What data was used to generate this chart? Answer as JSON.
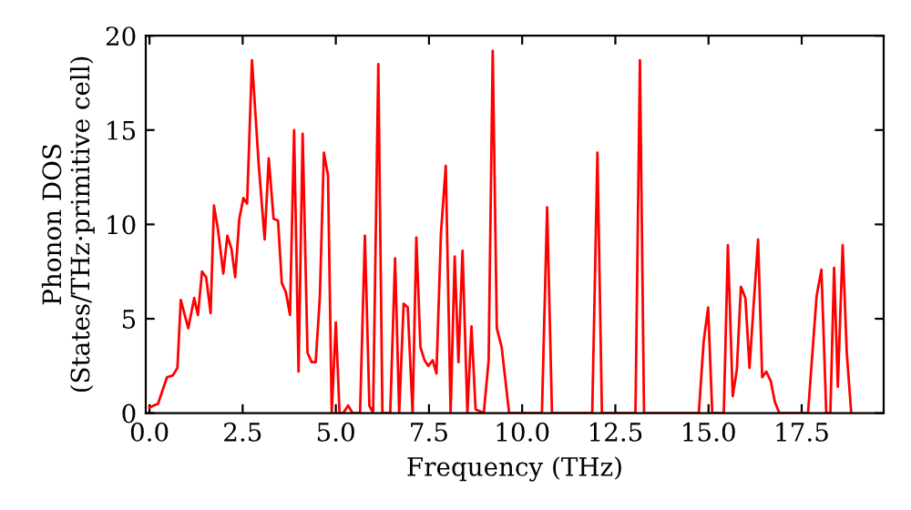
{
  "chart_data": {
    "type": "line",
    "xlabel": "Frequency (THz)",
    "ylabel": "Phonon DOS\n(States/THz·primitive cell)",
    "series": [
      {
        "color": "#ff0000",
        "x": [
          0,
          0.23,
          0.47,
          0.63,
          0.75,
          0.84,
          1.04,
          1.2,
          1.3,
          1.41,
          1.52,
          1.64,
          1.73,
          1.84,
          1.98,
          2.09,
          2.2,
          2.3,
          2.41,
          2.52,
          2.62,
          2.75,
          2.93,
          3.09,
          3.2,
          3.33,
          3.45,
          3.55,
          3.66,
          3.77,
          3.88,
          4.0,
          4.11,
          4.24,
          4.35,
          4.46,
          4.57,
          4.68,
          4.79,
          4.89,
          5.0,
          5.1,
          5.2,
          5.33,
          5.45,
          5.65,
          5.78,
          5.9,
          6.0,
          6.14,
          6.25,
          6.46,
          6.59,
          6.7,
          6.82,
          6.93,
          7.06,
          7.16,
          7.27,
          7.38,
          7.48,
          7.6,
          7.7,
          7.82,
          7.95,
          8.08,
          8.19,
          8.29,
          8.4,
          8.53,
          8.64,
          8.75,
          8.97,
          9.1,
          9.21,
          9.32,
          9.45,
          9.65,
          10.53,
          10.67,
          10.8,
          11.88,
          12.02,
          12.14,
          13.04,
          13.16,
          13.27,
          14.74,
          14.87,
          14.99,
          15.1,
          15.41,
          15.52,
          15.65,
          15.76,
          15.87,
          15.99,
          16.1,
          16.21,
          16.33,
          16.44,
          16.55,
          16.67,
          16.78,
          16.9,
          17.67,
          17.9,
          18.03,
          18.16,
          18.27,
          18.37,
          18.47,
          18.6,
          18.71,
          18.83
        ],
        "values": [
          0.3,
          0.5,
          1.9,
          2.0,
          2.4,
          6.0,
          4.5,
          6.1,
          5.2,
          7.5,
          7.2,
          5.3,
          11.0,
          9.7,
          7.4,
          9.4,
          8.7,
          7.2,
          10.3,
          11.4,
          11.1,
          18.7,
          13.2,
          9.2,
          13.5,
          10.3,
          10.2,
          6.9,
          6.4,
          5.2,
          15.0,
          2.2,
          14.8,
          3.2,
          2.7,
          2.7,
          6.1,
          13.8,
          12.6,
          0,
          4.8,
          0,
          0,
          0.4,
          0,
          0,
          9.4,
          0.4,
          0,
          18.5,
          0,
          0,
          8.2,
          0,
          5.8,
          5.6,
          0,
          9.3,
          3.5,
          2.8,
          2.5,
          2.8,
          2.1,
          9.5,
          13.1,
          0,
          8.3,
          2.7,
          8.6,
          0,
          4.6,
          0.2,
          0,
          2.8,
          19.2,
          4.5,
          3.5,
          0,
          0,
          10.9,
          0,
          0,
          13.8,
          0,
          0,
          18.7,
          0,
          0,
          3.8,
          5.6,
          0,
          0,
          8.9,
          0.9,
          2.3,
          6.7,
          6.1,
          2.4,
          5.7,
          9.2,
          1.9,
          2.2,
          1.7,
          0.6,
          0,
          0,
          6.2,
          7.6,
          0,
          0,
          7.7,
          1.4,
          8.9,
          3.2,
          0
        ]
      }
    ],
    "xlim": [
      -0.1,
      19.7
    ],
    "ylim": [
      0,
      20
    ],
    "xticks": [
      {
        "value": 0,
        "label": "0.0"
      },
      {
        "value": 2.5,
        "label": "2.5"
      },
      {
        "value": 5,
        "label": "5.0"
      },
      {
        "value": 7.5,
        "label": "7.5"
      },
      {
        "value": 10,
        "label": "10.0"
      },
      {
        "value": 12.5,
        "label": "12.5"
      },
      {
        "value": 15,
        "label": "15.0"
      },
      {
        "value": 17.5,
        "label": "17.5"
      }
    ],
    "yticks": [
      0,
      5,
      10,
      15,
      20
    ],
    "grid": false,
    "marker": "none",
    "line_style": "solid"
  }
}
